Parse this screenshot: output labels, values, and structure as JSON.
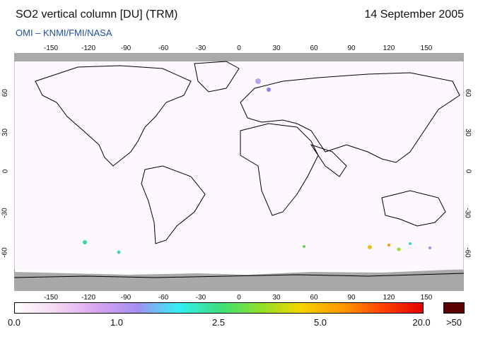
{
  "header": {
    "title": "SO2 vertical column [DU] (TRM)",
    "date": "14 September 2005",
    "credit": "OMI  –  KNMI/FMI/NASA"
  },
  "map": {
    "projection": "equirectangular",
    "lon_ticks": [
      "-150",
      "-120",
      "-90",
      "-60",
      "-30",
      "0",
      "30",
      "60",
      "90",
      "120",
      "150"
    ],
    "lat_ticks": [
      "60",
      "30",
      "0",
      "-30",
      "-60"
    ],
    "colors": {
      "land_outline": "#000000",
      "no_data": "#a9a9a9",
      "background": "#ffffff"
    }
  },
  "colorbar": {
    "labels": [
      "0.0",
      "1.0",
      "2.5",
      "5.0",
      "20.0"
    ],
    "over_label": ">50",
    "over_color": "#5a0000",
    "gradient": [
      "#ffffff",
      "#f4d8f2",
      "#d9a6f0",
      "#a58ef2",
      "#33f0f5",
      "#39e07c",
      "#8ee02a",
      "#f5d400",
      "#ff9900",
      "#ff4400",
      "#e00000"
    ]
  }
}
